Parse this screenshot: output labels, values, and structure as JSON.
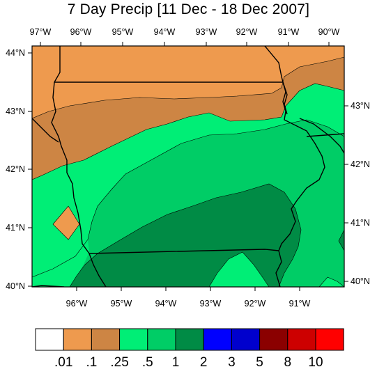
{
  "title": "7 Day Precip [11 Dec - 18 Dec 2007]",
  "top_lon_labels": [
    "97°W",
    "96°W",
    "95°W",
    "94°W",
    "93°W",
    "92°W",
    "91°W",
    "90°W"
  ],
  "bottom_lon_labels": [
    "96°W",
    "95°W",
    "94°W",
    "93°W",
    "92°W",
    "91°W"
  ],
  "left_lat_labels": [
    "44°N",
    "43°N",
    "42°N",
    "41°N",
    "40°N"
  ],
  "right_lat_labels": [
    "43°N",
    "42°N",
    "41°N",
    "40°N"
  ],
  "colorbar": {
    "colors": [
      "#ffffff",
      "#ee9a4e",
      "#cd8544",
      "#00ee76",
      "#00cd66",
      "#008b45",
      "#0000ff",
      "#0000cd",
      "#8b0000",
      "#cd0000",
      "#ff0000"
    ],
    "labels": [
      ".01",
      ".1",
      ".25",
      ".5",
      "1",
      "2",
      "3",
      "5",
      "8",
      "10"
    ]
  },
  "fill_colors": {
    "light_brown": "#ee9a4e",
    "dark_brown": "#cd8544",
    "light_green": "#00ee76",
    "medium_green": "#00cd66",
    "dark_green": "#008b45"
  }
}
